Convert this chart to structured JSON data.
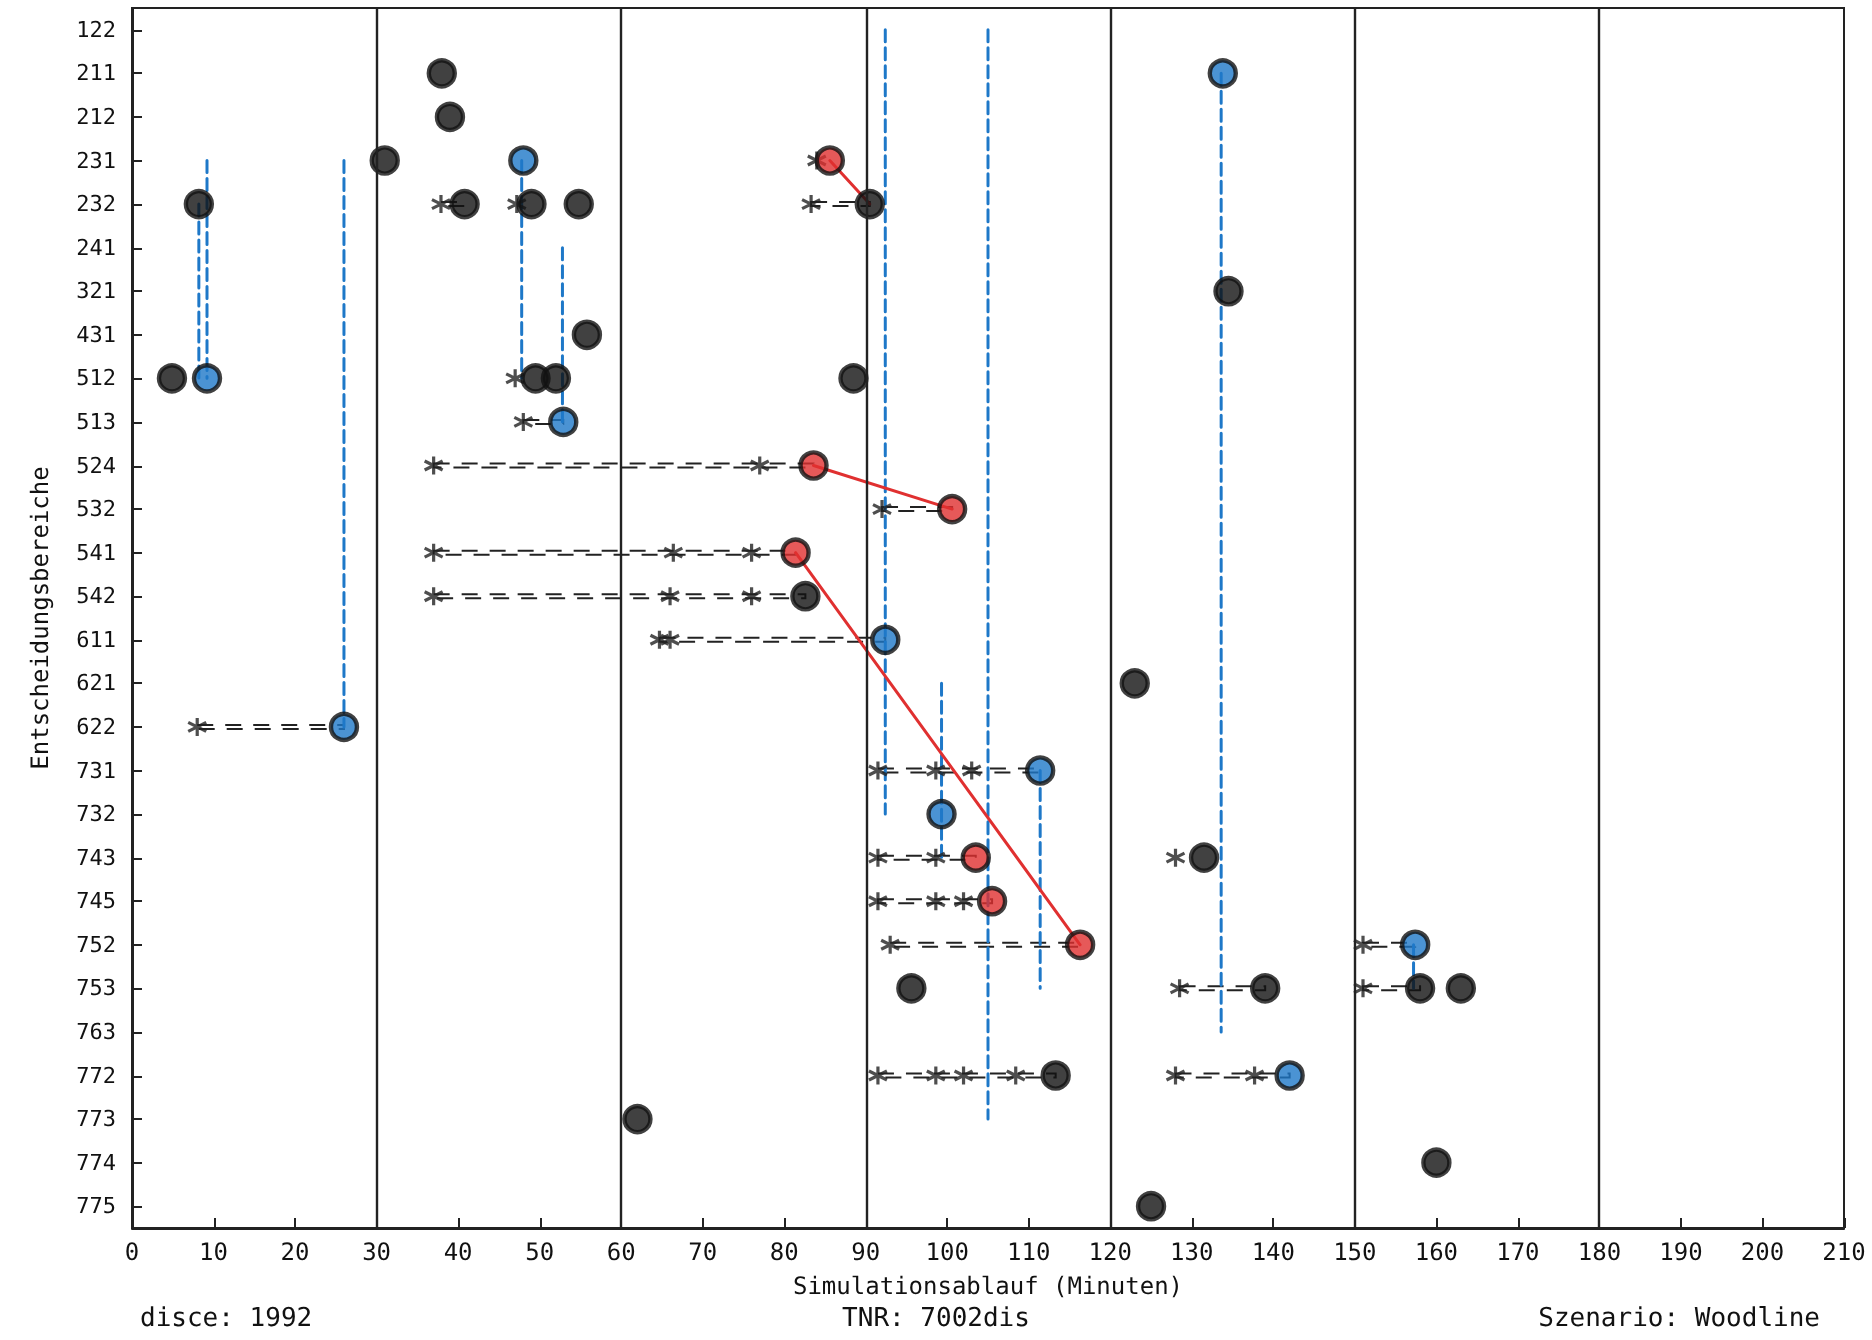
{
  "chart_data": {
    "type": "scatter",
    "orientation": "horizontal",
    "xlabel": "Simulationsablauf (Minuten)",
    "ylabel": "Entscheidungsbereiche",
    "annotations": [
      "disce: 1992",
      "TNR: 7002dis",
      "Szenario: Woodline"
    ],
    "categories": [
      "122",
      "211",
      "212",
      "231",
      "232",
      "241",
      "321",
      "431",
      "512",
      "513",
      "524",
      "532",
      "541",
      "542",
      "611",
      "621",
      "622",
      "731",
      "732",
      "743",
      "745",
      "752",
      "753",
      "763",
      "772",
      "773",
      "774",
      "775"
    ],
    "xlim": [
      0,
      210
    ],
    "xticks": [
      0,
      10,
      20,
      30,
      40,
      50,
      60,
      70,
      80,
      90,
      100,
      110,
      120,
      130,
      140,
      150,
      160,
      170,
      180,
      190,
      200,
      210
    ],
    "ref_lines": [
      {
        "axis": "x",
        "value": 30,
        "color": "#222222"
      },
      {
        "axis": "x",
        "value": 60,
        "color": "#222222"
      },
      {
        "axis": "x",
        "value": 90,
        "color": "#222222"
      },
      {
        "axis": "x",
        "value": 120,
        "color": "#222222"
      },
      {
        "axis": "x",
        "value": 150,
        "color": "#222222"
      },
      {
        "axis": "x",
        "value": 180,
        "color": "#222222"
      }
    ],
    "series": [
      {
        "type": "bar",
        "color": "#222222",
        "line_style": "dashed",
        "base": [
          null,
          null,
          null,
          null,
          37.9,
          null,
          null,
          null,
          null,
          48,
          37,
          92,
          37,
          37,
          64.7,
          null,
          8,
          91.5,
          null,
          91.5,
          91.5,
          93,
          128.5,
          null,
          91.5,
          null,
          null,
          null
        ],
        "values": [
          null,
          null,
          null,
          null,
          2.9,
          null,
          null,
          null,
          null,
          4.9,
          46.6,
          8.6,
          44.4,
          45.6,
          27.7,
          null,
          18,
          19.9,
          null,
          12,
          14,
          23.3,
          10.5,
          null,
          21.8,
          null,
          null,
          null
        ]
      },
      {
        "type": "bar",
        "color": "#222222",
        "line_style": "dashed",
        "base": [
          null,
          null,
          null,
          null,
          83.3,
          null,
          null,
          null,
          null,
          null,
          null,
          null,
          null,
          null,
          null,
          null,
          null,
          null,
          null,
          null,
          null,
          151,
          151,
          null,
          128,
          null,
          null,
          null
        ],
        "values": [
          null,
          null,
          null,
          null,
          7.2,
          null,
          null,
          null,
          null,
          null,
          null,
          null,
          null,
          null,
          null,
          null,
          null,
          null,
          null,
          null,
          null,
          6.4,
          7,
          null,
          14,
          null,
          null,
          null
        ]
      },
      {
        "type": "line",
        "color": "#1e78c8",
        "line_style": "dashed",
        "marker": "none",
        "values": [
          null,
          null,
          null,
          null,
          8.2,
          null,
          null,
          null,
          8.2,
          null,
          null,
          null,
          null,
          null,
          null,
          null,
          null,
          null,
          null,
          null,
          null,
          null,
          null,
          null,
          null,
          null,
          null,
          null
        ]
      },
      {
        "type": "line",
        "color": "#1e78c8",
        "line_style": "dashed",
        "marker": "none",
        "values": [
          null,
          null,
          null,
          9.2,
          null,
          null,
          null,
          null,
          9.2,
          null,
          null,
          null,
          null,
          null,
          null,
          null,
          null,
          null,
          null,
          null,
          null,
          null,
          null,
          null,
          null,
          null,
          null,
          null
        ]
      },
      {
        "type": "line",
        "color": "#1e78c8",
        "line_style": "dashed",
        "marker": "none",
        "values": [
          null,
          null,
          null,
          26,
          null,
          null,
          null,
          null,
          null,
          null,
          null,
          null,
          null,
          null,
          null,
          null,
          26,
          null,
          null,
          null,
          null,
          null,
          null,
          null,
          null,
          null,
          null,
          null
        ]
      },
      {
        "type": "line",
        "color": "#1e78c8",
        "line_style": "dashed",
        "marker": "none",
        "values": [
          null,
          null,
          null,
          47.8,
          null,
          null,
          null,
          null,
          47.8,
          null,
          null,
          null,
          null,
          null,
          null,
          null,
          null,
          null,
          null,
          null,
          null,
          null,
          null,
          null,
          null,
          null,
          null,
          null
        ]
      },
      {
        "type": "line",
        "color": "#1e78c8",
        "line_style": "dashed",
        "marker": "none",
        "values": [
          null,
          null,
          null,
          null,
          null,
          52.8,
          null,
          null,
          null,
          52.8,
          null,
          null,
          null,
          null,
          null,
          null,
          null,
          null,
          null,
          null,
          null,
          null,
          null,
          null,
          null,
          null,
          null,
          null
        ]
      },
      {
        "type": "line",
        "color": "#1e78c8",
        "line_style": "dashed",
        "marker": "none",
        "values": [
          92.4,
          null,
          null,
          null,
          null,
          null,
          null,
          null,
          null,
          null,
          null,
          null,
          null,
          null,
          null,
          null,
          null,
          null,
          92.4,
          null,
          null,
          null,
          null,
          null,
          null,
          null,
          null,
          null
        ]
      },
      {
        "type": "line",
        "color": "#1e78c8",
        "line_style": "dashed",
        "marker": "none",
        "values": [
          105,
          null,
          null,
          null,
          null,
          null,
          null,
          null,
          null,
          null,
          null,
          null,
          null,
          null,
          null,
          null,
          null,
          null,
          null,
          null,
          null,
          null,
          null,
          null,
          null,
          105,
          null,
          null
        ]
      },
      {
        "type": "line",
        "color": "#1e78c8",
        "line_style": "dashed",
        "marker": "none",
        "values": [
          null,
          null,
          null,
          null,
          null,
          null,
          null,
          null,
          null,
          null,
          null,
          null,
          null,
          null,
          null,
          99.3,
          null,
          null,
          null,
          99.3,
          null,
          null,
          null,
          null,
          null,
          null,
          null,
          null
        ]
      },
      {
        "type": "line",
        "color": "#1e78c8",
        "line_style": "dashed",
        "marker": "none",
        "values": [
          null,
          null,
          null,
          null,
          null,
          null,
          null,
          null,
          null,
          null,
          null,
          null,
          null,
          null,
          null,
          null,
          null,
          111.4,
          null,
          null,
          null,
          null,
          111.4,
          null,
          null,
          null,
          null,
          null
        ]
      },
      {
        "type": "line",
        "color": "#1e78c8",
        "line_style": "dashed",
        "marker": "none",
        "values": [
          null,
          133.6,
          null,
          null,
          null,
          null,
          null,
          null,
          null,
          null,
          null,
          null,
          null,
          null,
          null,
          null,
          null,
          null,
          null,
          null,
          null,
          null,
          null,
          133.6,
          null,
          null,
          null,
          null
        ]
      },
      {
        "type": "line",
        "color": "#1e78c8",
        "line_style": "dashed",
        "marker": "none",
        "values": [
          null,
          null,
          null,
          null,
          null,
          null,
          null,
          null,
          null,
          null,
          null,
          null,
          null,
          null,
          null,
          null,
          null,
          null,
          null,
          null,
          null,
          157.2,
          157.2,
          null,
          null,
          null,
          null,
          null
        ]
      },
      {
        "type": "line",
        "color": "#e03030",
        "line_style": "solid",
        "marker": "none",
        "values": [
          null,
          null,
          null,
          85.6,
          90.5,
          null,
          null,
          null,
          null,
          null,
          null,
          null,
          null,
          null,
          null,
          null,
          null,
          null,
          null,
          null,
          null,
          null,
          null,
          null,
          null,
          null,
          null,
          null
        ]
      },
      {
        "type": "line",
        "color": "#e03030",
        "line_style": "solid",
        "marker": "none",
        "values": [
          null,
          null,
          null,
          null,
          null,
          null,
          null,
          null,
          null,
          null,
          83.6,
          100.6,
          null,
          null,
          null,
          null,
          null,
          null,
          null,
          null,
          null,
          null,
          null,
          null,
          null,
          null,
          null,
          null
        ]
      },
      {
        "type": "line",
        "color": "#e03030",
        "line_style": "solid",
        "marker": "none",
        "values": [
          null,
          null,
          null,
          null,
          null,
          null,
          null,
          null,
          null,
          null,
          null,
          null,
          81.4,
          null,
          null,
          null,
          null,
          null,
          null,
          null,
          null,
          116.3,
          null,
          null,
          null,
          null,
          null,
          null
        ]
      },
      {
        "color": "#222222",
        "marker": "cross",
        "values": [
          null,
          null,
          null,
          84,
          37.9,
          null,
          null,
          null,
          47,
          48,
          37,
          92,
          37,
          37,
          64.7,
          null,
          8,
          91.5,
          null,
          91.5,
          91.5,
          93,
          128.5,
          null,
          91.5,
          null,
          null,
          null
        ]
      },
      {
        "color": "#222222",
        "marker": "cross",
        "values": [
          null,
          null,
          null,
          null,
          47.2,
          null,
          null,
          null,
          null,
          null,
          77,
          null,
          66.4,
          66,
          66,
          null,
          null,
          98.6,
          null,
          98.6,
          98.6,
          151,
          151,
          null,
          98.6,
          null,
          null,
          null
        ]
      },
      {
        "color": "#222222",
        "marker": "cross",
        "values": [
          null,
          null,
          null,
          null,
          83.3,
          null,
          null,
          null,
          null,
          null,
          null,
          null,
          76,
          76,
          null,
          null,
          null,
          103,
          null,
          128,
          102,
          null,
          null,
          null,
          102,
          null,
          null,
          null
        ]
      },
      {
        "color": "#222222",
        "marker": "cross",
        "values": [
          null,
          null,
          null,
          null,
          null,
          null,
          null,
          null,
          null,
          null,
          null,
          null,
          null,
          null,
          null,
          null,
          null,
          null,
          null,
          null,
          null,
          null,
          null,
          null,
          108.4,
          null,
          null,
          null
        ]
      },
      {
        "color": "#222222",
        "marker": "cross",
        "values": [
          null,
          null,
          null,
          null,
          null,
          null,
          null,
          null,
          null,
          null,
          null,
          null,
          null,
          null,
          null,
          null,
          null,
          null,
          null,
          null,
          null,
          null,
          null,
          null,
          128,
          null,
          null,
          null
        ]
      },
      {
        "color": "#222222",
        "marker": "cross",
        "values": [
          null,
          null,
          null,
          null,
          null,
          null,
          null,
          null,
          null,
          null,
          null,
          null,
          null,
          null,
          null,
          null,
          null,
          null,
          null,
          null,
          null,
          null,
          null,
          null,
          137.7,
          null,
          null,
          null
        ]
      },
      {
        "color": "#111111",
        "marker": "circle",
        "values": [
          null,
          38,
          39,
          31,
          8.2,
          null,
          null,
          55.8,
          49.5,
          null,
          null,
          null,
          null,
          82.6,
          null,
          123,
          null,
          null,
          null,
          131.5,
          null,
          null,
          95.6,
          null,
          113.3,
          62,
          160,
          125
        ]
      },
      {
        "color": "#111111",
        "marker": "circle",
        "values": [
          null,
          null,
          null,
          null,
          40.8,
          null,
          null,
          null,
          52,
          null,
          null,
          null,
          null,
          null,
          null,
          null,
          null,
          null,
          null,
          null,
          null,
          null,
          139,
          null,
          null,
          null,
          null,
          null
        ]
      },
      {
        "color": "#111111",
        "marker": "circle",
        "values": [
          null,
          null,
          null,
          null,
          49,
          null,
          null,
          null,
          88.5,
          null,
          null,
          null,
          null,
          null,
          null,
          null,
          null,
          null,
          null,
          null,
          null,
          null,
          158,
          null,
          null,
          null,
          null,
          null
        ]
      },
      {
        "color": "#111111",
        "marker": "circle",
        "values": [
          null,
          null,
          null,
          null,
          54.8,
          null,
          null,
          null,
          null,
          null,
          null,
          null,
          null,
          null,
          null,
          null,
          null,
          null,
          null,
          null,
          null,
          null,
          163,
          null,
          null,
          null,
          null,
          null
        ]
      },
      {
        "color": "#111111",
        "marker": "circle",
        "values": [
          null,
          null,
          null,
          null,
          90.5,
          null,
          null,
          null,
          null,
          null,
          null,
          null,
          null,
          null,
          null,
          null,
          null,
          null,
          null,
          null,
          null,
          null,
          null,
          null,
          null,
          null,
          null,
          null
        ]
      },
      {
        "color": "#1e78c8",
        "marker": "circle",
        "values": [
          null,
          133.8,
          null,
          48,
          null,
          null,
          null,
          null,
          9.2,
          52.9,
          null,
          null,
          null,
          null,
          92.4,
          null,
          26,
          111.4,
          99.3,
          null,
          null,
          157.4,
          null,
          null,
          142,
          null,
          null,
          null
        ]
      },
      {
        "color": "#e03030",
        "marker": "circle",
        "values": [
          null,
          null,
          null,
          85.6,
          null,
          null,
          null,
          null,
          null,
          null,
          83.6,
          100.6,
          81.4,
          null,
          null,
          null,
          null,
          null,
          null,
          103.5,
          105.5,
          116.3,
          null,
          null,
          null,
          null,
          null,
          null
        ]
      },
      {
        "color": "#111111",
        "marker": "circle",
        "values": [
          null,
          null,
          null,
          null,
          null,
          null,
          134.5,
          null,
          4.9,
          null,
          null,
          null,
          null,
          null,
          null,
          null,
          null,
          null,
          null,
          null,
          null,
          null,
          null,
          null,
          null,
          null,
          null,
          null
        ]
      }
    ]
  }
}
